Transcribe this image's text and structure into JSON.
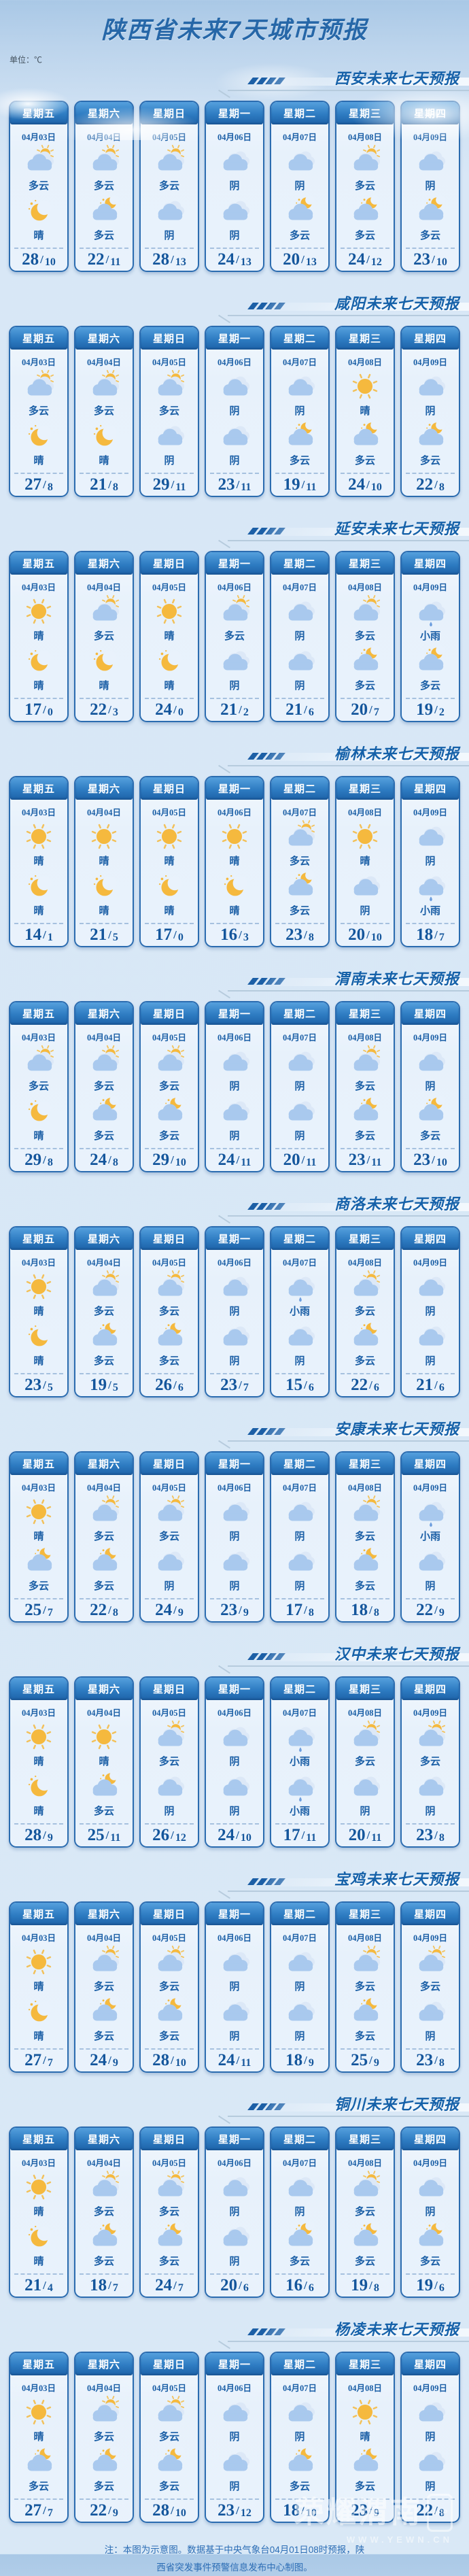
{
  "title": "陕西省未来7天城市预报",
  "unit_label": "单位：℃",
  "weekdays": [
    "星期五",
    "星期六",
    "星期日",
    "星期一",
    "星期二",
    "星期三",
    "星期四"
  ],
  "dates": [
    "04月03日",
    "04月04日",
    "04月05日",
    "04月06日",
    "04月07日",
    "04月08日",
    "04月09日"
  ],
  "temp_separator": "/",
  "cities": [
    {
      "header": "西安未来七天预报",
      "day_texts": [
        "多云",
        "多云",
        "多云",
        "阴",
        "阴",
        "多云",
        "阴"
      ],
      "day_icons": [
        "cloud-sun",
        "cloud-sun",
        "cloud-sun",
        "cloud",
        "cloud",
        "cloud-sun",
        "cloud"
      ],
      "night_texts": [
        "晴",
        "多云",
        "阴",
        "阴",
        "多云",
        "多云",
        "多云"
      ],
      "night_icons": [
        "moon",
        "cloud-moon",
        "cloud",
        "cloud",
        "cloud-moon",
        "cloud-moon",
        "cloud-moon"
      ],
      "highs": [
        28,
        22,
        28,
        24,
        20,
        24,
        23
      ],
      "lows": [
        10,
        11,
        13,
        13,
        13,
        12,
        10
      ]
    },
    {
      "header": "咸阳未来七天预报",
      "day_texts": [
        "多云",
        "多云",
        "多云",
        "阴",
        "阴",
        "晴",
        "阴"
      ],
      "day_icons": [
        "cloud-sun",
        "cloud-sun",
        "cloud-sun",
        "cloud",
        "cloud",
        "sun",
        "cloud"
      ],
      "night_texts": [
        "晴",
        "晴",
        "阴",
        "阴",
        "多云",
        "多云",
        "多云"
      ],
      "night_icons": [
        "moon",
        "moon",
        "cloud",
        "cloud",
        "cloud-moon",
        "cloud-moon",
        "cloud-moon"
      ],
      "highs": [
        27,
        21,
        29,
        23,
        19,
        24,
        22
      ],
      "lows": [
        8,
        8,
        11,
        11,
        11,
        10,
        8
      ]
    },
    {
      "header": "延安未来七天预报",
      "day_texts": [
        "晴",
        "多云",
        "晴",
        "多云",
        "阴",
        "多云",
        "小雨"
      ],
      "day_icons": [
        "sun",
        "cloud-sun",
        "sun",
        "cloud-sun",
        "cloud",
        "cloud-sun",
        "rain"
      ],
      "night_texts": [
        "晴",
        "晴",
        "晴",
        "阴",
        "阴",
        "多云",
        "多云"
      ],
      "night_icons": [
        "moon",
        "moon",
        "moon",
        "cloud",
        "cloud",
        "cloud-moon",
        "cloud-moon"
      ],
      "highs": [
        17,
        22,
        24,
        21,
        21,
        20,
        19
      ],
      "lows": [
        0,
        3,
        0,
        2,
        6,
        7,
        2
      ]
    },
    {
      "header": "榆林未来七天预报",
      "day_texts": [
        "晴",
        "晴",
        "晴",
        "晴",
        "多云",
        "晴",
        "阴"
      ],
      "day_icons": [
        "sun",
        "sun",
        "sun",
        "sun",
        "cloud-sun",
        "sun",
        "cloud"
      ],
      "night_texts": [
        "晴",
        "晴",
        "晴",
        "晴",
        "多云",
        "阴",
        "小雨"
      ],
      "night_icons": [
        "moon",
        "moon",
        "moon",
        "moon",
        "cloud-moon",
        "cloud",
        "rain"
      ],
      "highs": [
        14,
        21,
        17,
        16,
        23,
        20,
        18
      ],
      "lows": [
        1,
        5,
        0,
        3,
        8,
        10,
        7
      ]
    },
    {
      "header": "渭南未来七天预报",
      "day_texts": [
        "多云",
        "多云",
        "多云",
        "阴",
        "阴",
        "多云",
        "阴"
      ],
      "day_icons": [
        "cloud-sun",
        "cloud-sun",
        "cloud-sun",
        "cloud",
        "cloud",
        "cloud-sun",
        "cloud"
      ],
      "night_texts": [
        "晴",
        "多云",
        "多云",
        "阴",
        "阴",
        "多云",
        "多云"
      ],
      "night_icons": [
        "moon",
        "cloud-moon",
        "cloud-moon",
        "cloud",
        "cloud",
        "cloud-moon",
        "cloud-moon"
      ],
      "highs": [
        29,
        24,
        29,
        24,
        20,
        23,
        23
      ],
      "lows": [
        8,
        8,
        10,
        11,
        11,
        11,
        10
      ]
    },
    {
      "header": "商洛未来七天预报",
      "day_texts": [
        "晴",
        "多云",
        "多云",
        "阴",
        "小雨",
        "多云",
        "阴"
      ],
      "day_icons": [
        "sun",
        "cloud-sun",
        "cloud-sun",
        "cloud",
        "rain",
        "cloud-sun",
        "cloud"
      ],
      "night_texts": [
        "晴",
        "多云",
        "多云",
        "阴",
        "阴",
        "多云",
        "阴"
      ],
      "night_icons": [
        "moon",
        "cloud-moon",
        "cloud-moon",
        "cloud",
        "cloud",
        "cloud-moon",
        "cloud"
      ],
      "highs": [
        23,
        19,
        26,
        23,
        15,
        22,
        21
      ],
      "lows": [
        5,
        5,
        6,
        7,
        6,
        6,
        6
      ]
    },
    {
      "header": "安康未来七天预报",
      "day_texts": [
        "晴",
        "多云",
        "多云",
        "阴",
        "阴",
        "多云",
        "小雨"
      ],
      "day_icons": [
        "sun",
        "cloud-sun",
        "cloud-sun",
        "cloud",
        "cloud",
        "cloud-sun",
        "rain"
      ],
      "night_texts": [
        "多云",
        "多云",
        "阴",
        "阴",
        "阴",
        "多云",
        "阴"
      ],
      "night_icons": [
        "cloud-moon",
        "cloud-moon",
        "cloud",
        "cloud",
        "cloud",
        "cloud-moon",
        "cloud"
      ],
      "highs": [
        25,
        22,
        24,
        23,
        17,
        18,
        22
      ],
      "lows": [
        7,
        8,
        9,
        9,
        8,
        8,
        9
      ]
    },
    {
      "header": "汉中未来七天预报",
      "day_texts": [
        "晴",
        "晴",
        "多云",
        "阴",
        "小雨",
        "多云",
        "多云"
      ],
      "day_icons": [
        "sun",
        "sun",
        "cloud-sun",
        "cloud",
        "rain",
        "cloud-sun",
        "cloud-sun"
      ],
      "night_texts": [
        "晴",
        "多云",
        "阴",
        "阴",
        "小雨",
        "阴",
        "阴"
      ],
      "night_icons": [
        "moon",
        "cloud-moon",
        "cloud",
        "cloud",
        "rain",
        "cloud",
        "cloud"
      ],
      "highs": [
        28,
        25,
        26,
        24,
        17,
        20,
        23
      ],
      "lows": [
        9,
        11,
        12,
        10,
        11,
        11,
        8
      ]
    },
    {
      "header": "宝鸡未来七天预报",
      "day_texts": [
        "晴",
        "多云",
        "多云",
        "阴",
        "阴",
        "多云",
        "多云"
      ],
      "day_icons": [
        "sun",
        "cloud-sun",
        "cloud-sun",
        "cloud",
        "cloud",
        "cloud-sun",
        "cloud-sun"
      ],
      "night_texts": [
        "晴",
        "多云",
        "多云",
        "阴",
        "阴",
        "多云",
        "阴"
      ],
      "night_icons": [
        "moon",
        "cloud-moon",
        "cloud-moon",
        "cloud",
        "cloud",
        "cloud-moon",
        "cloud"
      ],
      "highs": [
        27,
        24,
        28,
        24,
        18,
        25,
        23
      ],
      "lows": [
        7,
        9,
        10,
        11,
        9,
        9,
        8
      ]
    },
    {
      "header": "铜川未来七天预报",
      "day_texts": [
        "晴",
        "多云",
        "多云",
        "阴",
        "阴",
        "多云",
        "阴"
      ],
      "day_icons": [
        "sun",
        "cloud-sun",
        "cloud-sun",
        "cloud",
        "cloud",
        "cloud-sun",
        "cloud"
      ],
      "night_texts": [
        "晴",
        "多云",
        "多云",
        "阴",
        "多云",
        "多云",
        "多云"
      ],
      "night_icons": [
        "moon",
        "cloud-moon",
        "cloud-moon",
        "cloud",
        "cloud-moon",
        "cloud-moon",
        "cloud-moon"
      ],
      "highs": [
        21,
        18,
        24,
        20,
        16,
        19,
        19
      ],
      "lows": [
        4,
        7,
        7,
        6,
        6,
        8,
        6
      ]
    },
    {
      "header": "杨凌未来七天预报",
      "day_texts": [
        "晴",
        "多云",
        "多云",
        "阴",
        "阴",
        "晴",
        "阴"
      ],
      "day_icons": [
        "sun",
        "cloud-sun",
        "cloud-sun",
        "cloud",
        "cloud",
        "sun",
        "cloud"
      ],
      "night_texts": [
        "多云",
        "多云",
        "多云",
        "阴",
        "多云",
        "多云",
        "阴"
      ],
      "night_icons": [
        "cloud-moon",
        "cloud-moon",
        "cloud-moon",
        "cloud",
        "cloud-moon",
        "cloud-moon",
        "cloud"
      ],
      "highs": [
        27,
        22,
        28,
        23,
        18,
        23,
        22
      ],
      "lows": [
        7,
        9,
        10,
        12,
        10,
        9,
        8
      ]
    }
  ],
  "footer": {
    "line1": "注：本图为示意图。数据基于中央气象台04月01日08时预报，陕",
    "line2": "西省突发事件预警信息发布中心制图。"
  },
  "watermark": {
    "brand": "荣耀渭南",
    "url": "WWW.YEWN.CN",
    "app_label": "APP"
  },
  "colors": {
    "accent_blue": "#1563a8",
    "title_blue": "#2667a8",
    "card_border": "#2b6cb0",
    "card_bg": "#e9f2fc",
    "card_header_top": "#55a0dd",
    "card_header_bottom": "#1d62a8",
    "text_blue": "#1b5fa6",
    "temp_blue": "#14569c",
    "sun_yellow": "#f5b93e",
    "cloud_blue": "#a9c9ee",
    "rain_drop": "#6d9ede"
  }
}
